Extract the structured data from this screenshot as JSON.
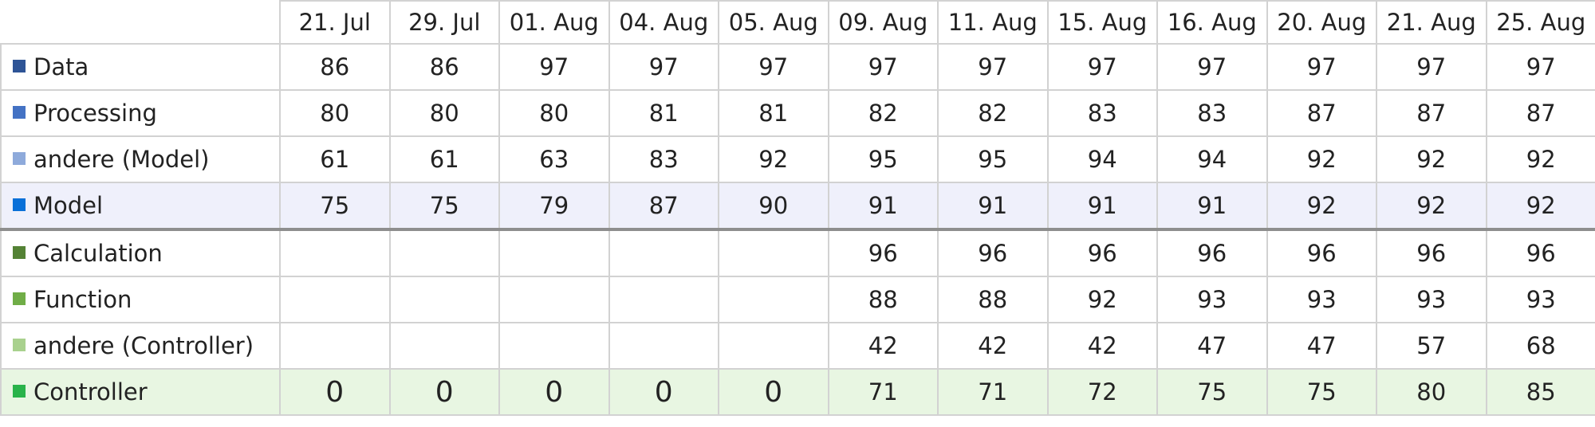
{
  "chart_data": {
    "type": "table",
    "columns": [
      "21. Jul",
      "29. Jul",
      "01. Aug",
      "04. Aug",
      "05. Aug",
      "09. Aug",
      "11. Aug",
      "15. Aug",
      "16. Aug",
      "20. Aug",
      "21. Aug",
      "25. Aug"
    ],
    "rows": [
      {
        "label": "Data",
        "color": "#2e5496",
        "style": "normal",
        "values": [
          "86",
          "86",
          "97",
          "97",
          "97",
          "97",
          "97",
          "97",
          "97",
          "97",
          "97",
          "97"
        ]
      },
      {
        "label": "Processing",
        "color": "#4472c4",
        "style": "normal",
        "values": [
          "80",
          "80",
          "80",
          "81",
          "81",
          "82",
          "82",
          "83",
          "83",
          "87",
          "87",
          "87"
        ]
      },
      {
        "label": "andere (Model)",
        "color": "#8eaadb",
        "style": "normal",
        "values": [
          "61",
          "61",
          "63",
          "83",
          "92",
          "95",
          "95",
          "94",
          "94",
          "92",
          "92",
          "92"
        ]
      },
      {
        "label": "Model",
        "color": "#0a70d8",
        "style": "model",
        "values": [
          "75",
          "75",
          "79",
          "87",
          "90",
          "91",
          "91",
          "91",
          "91",
          "92",
          "92",
          "92"
        ]
      },
      {
        "label": "Calculation",
        "color": "#548235",
        "style": "normal",
        "values": [
          "",
          "",
          "",
          "",
          "",
          "96",
          "96",
          "96",
          "96",
          "96",
          "96",
          "96"
        ]
      },
      {
        "label": "Function",
        "color": "#70ad47",
        "style": "normal",
        "values": [
          "",
          "",
          "",
          "",
          "",
          "88",
          "88",
          "92",
          "93",
          "93",
          "93",
          "93"
        ]
      },
      {
        "label": "andere (Controller)",
        "color": "#a9d18e",
        "style": "normal",
        "values": [
          "",
          "",
          "",
          "",
          "",
          "42",
          "42",
          "42",
          "47",
          "47",
          "57",
          "68"
        ]
      },
      {
        "label": "Controller",
        "color": "#29b34a",
        "style": "controller",
        "values": [
          "0",
          "0",
          "0",
          "0",
          "0",
          "71",
          "71",
          "72",
          "75",
          "75",
          "80",
          "85"
        ]
      }
    ]
  }
}
